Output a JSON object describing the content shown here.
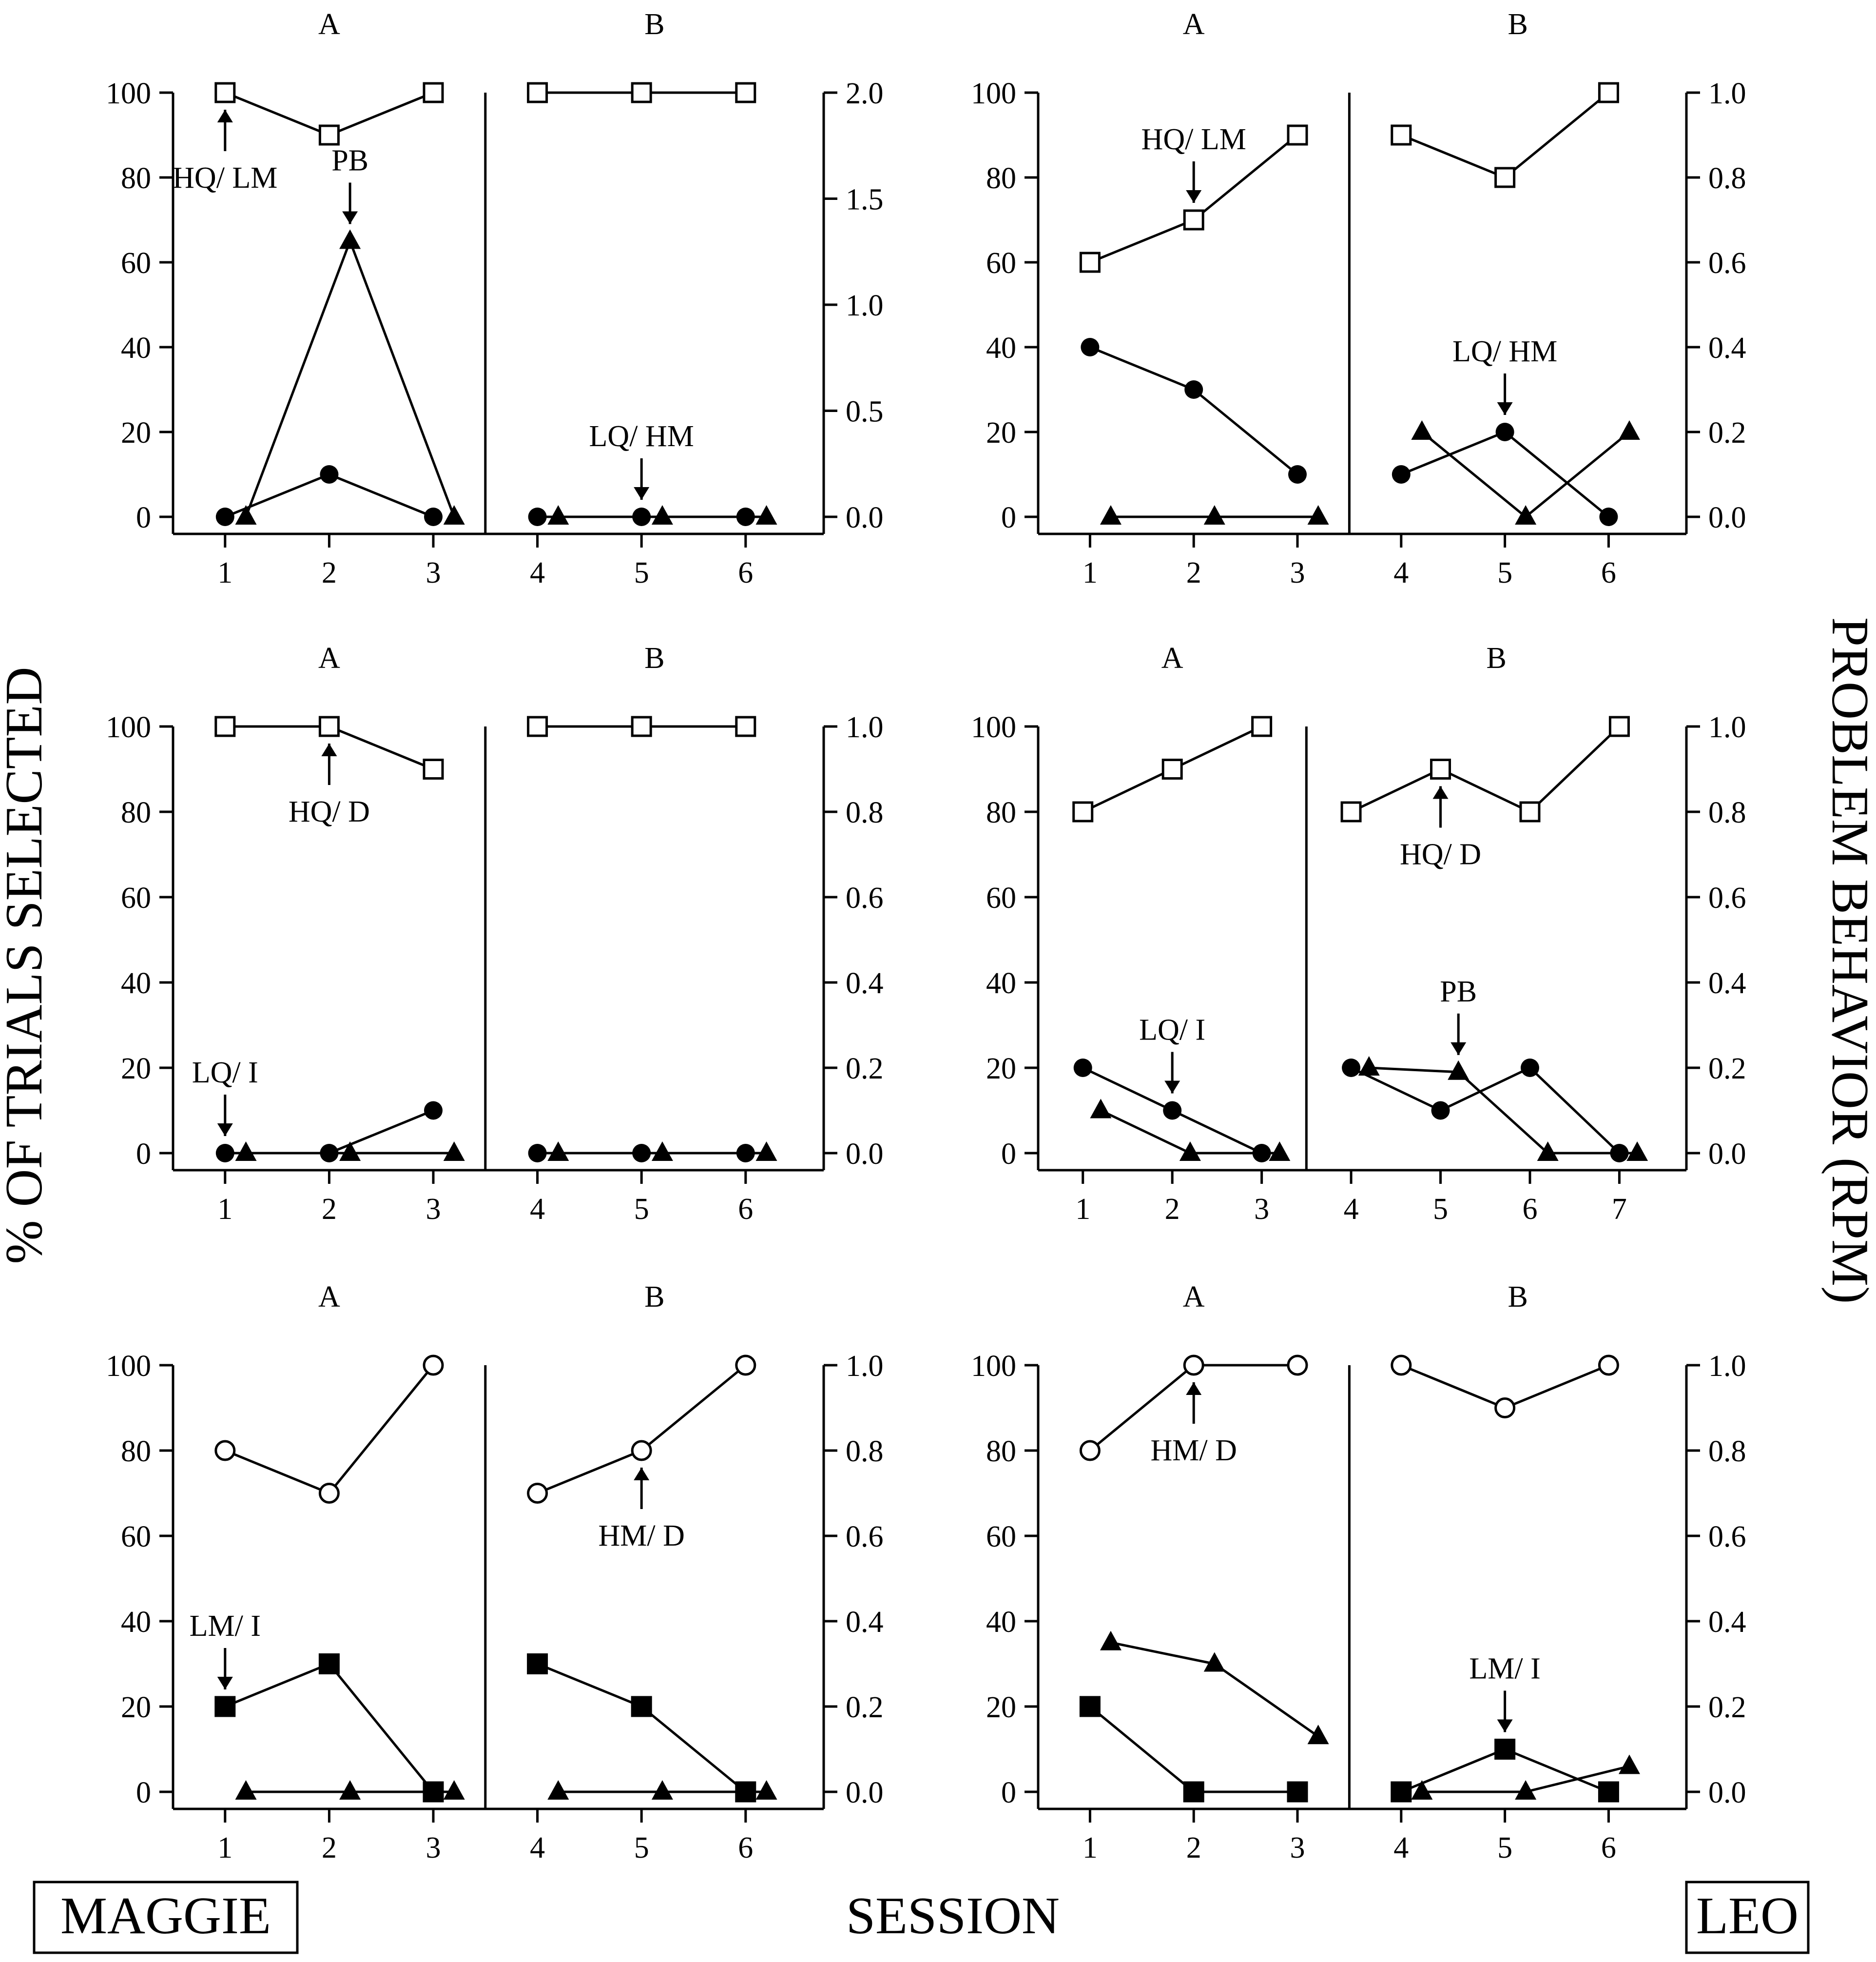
{
  "figure": {
    "y_axis_label": "% OF TRIALS SELECTED",
    "y2_axis_label": "PROBLEM BEHAVIOR (RPM)",
    "x_axis_label": "SESSION",
    "participants": [
      "MAGGIE",
      "LEO"
    ]
  },
  "chart_data": [
    {
      "id": "maggie-row1",
      "type": "line",
      "participant": "MAGGIE",
      "phase_labels": [
        "A",
        "B"
      ],
      "xlim": [
        0.5,
        6.75
      ],
      "phase_change_after": 3.5,
      "ylim": [
        0,
        100
      ],
      "y_ticks": [
        0,
        20,
        40,
        60,
        80,
        100
      ],
      "y2lim": [
        0,
        2.0
      ],
      "y2_ticks": [
        "0.0",
        "0.5",
        "1.0",
        "1.5",
        "2.0"
      ],
      "x_ticks": [
        1,
        2,
        3,
        4,
        5,
        6
      ],
      "series": [
        {
          "name": "HQ/ LM",
          "marker": "open-square",
          "axis": "left",
          "points": [
            [
              1,
              100
            ],
            [
              2,
              90
            ],
            [
              3,
              100
            ],
            null,
            [
              4,
              100
            ],
            [
              5,
              100
            ],
            [
              6,
              100
            ]
          ]
        },
        {
          "name": "LQ/ HM",
          "marker": "filled-circle",
          "axis": "left",
          "points": [
            [
              1,
              0
            ],
            [
              2,
              10
            ],
            [
              3,
              0
            ],
            null,
            [
              4,
              0
            ],
            [
              5,
              0
            ],
            [
              6,
              0
            ]
          ]
        },
        {
          "name": "PB",
          "marker": "filled-triangle",
          "axis": "right",
          "points": [
            [
              1.2,
              0
            ],
            [
              2.2,
              1.3
            ],
            [
              3.2,
              0
            ],
            null,
            [
              4.2,
              0
            ],
            [
              5.2,
              0
            ],
            [
              6.2,
              0
            ]
          ]
        }
      ],
      "annotations": [
        {
          "text": "HQ/ LM",
          "x": 1,
          "y": 100,
          "arrow": "up"
        },
        {
          "text": "PB",
          "x": 2.2,
          "y": 65,
          "arrow": "down"
        },
        {
          "text": "LQ/ HM",
          "x": 5,
          "y": 0,
          "arrow": "down"
        }
      ]
    },
    {
      "id": "leo-row1",
      "type": "line",
      "participant": "LEO",
      "phase_labels": [
        "A",
        "B"
      ],
      "xlim": [
        0.5,
        6.75
      ],
      "phase_change_after": 3.5,
      "ylim": [
        0,
        100
      ],
      "y_ticks": [
        0,
        20,
        40,
        60,
        80,
        100
      ],
      "y2lim": [
        0,
        1.0
      ],
      "y2_ticks": [
        "0.0",
        "0.2",
        "0.4",
        "0.6",
        "0.8",
        "1.0"
      ],
      "x_ticks": [
        1,
        2,
        3,
        4,
        5,
        6
      ],
      "series": [
        {
          "name": "HQ/ LM",
          "marker": "open-square",
          "axis": "left",
          "points": [
            [
              1,
              60
            ],
            [
              2,
              70
            ],
            [
              3,
              90
            ],
            null,
            [
              4,
              90
            ],
            [
              5,
              80
            ],
            [
              6,
              100
            ]
          ]
        },
        {
          "name": "LQ/ HM",
          "marker": "filled-circle",
          "axis": "left",
          "points": [
            [
              1,
              40
            ],
            [
              2,
              30
            ],
            [
              3,
              10
            ],
            null,
            [
              4,
              10
            ],
            [
              5,
              20
            ],
            [
              6,
              0
            ]
          ]
        },
        {
          "name": "PB",
          "marker": "filled-triangle",
          "axis": "right",
          "points": [
            [
              1.2,
              0
            ],
            [
              2.2,
              0
            ],
            [
              3.2,
              0
            ],
            null,
            [
              4.2,
              0.2
            ],
            [
              5.2,
              0
            ],
            [
              6.2,
              0.2
            ]
          ]
        }
      ],
      "annotations": [
        {
          "text": "HQ/ LM",
          "x": 2,
          "y": 70,
          "arrow": "down"
        },
        {
          "text": "LQ/ HM",
          "x": 5,
          "y": 20,
          "arrow": "down"
        }
      ]
    },
    {
      "id": "maggie-row2",
      "type": "line",
      "participant": "MAGGIE",
      "phase_labels": [
        "A",
        "B"
      ],
      "xlim": [
        0.5,
        6.75
      ],
      "phase_change_after": 3.5,
      "ylim": [
        0,
        100
      ],
      "y_ticks": [
        0,
        20,
        40,
        60,
        80,
        100
      ],
      "y2lim": [
        0,
        1.0
      ],
      "y2_ticks": [
        "0.0",
        "0.2",
        "0.4",
        "0.6",
        "0.8",
        "1.0"
      ],
      "x_ticks": [
        1,
        2,
        3,
        4,
        5,
        6
      ],
      "series": [
        {
          "name": "HQ/ D",
          "marker": "open-square",
          "axis": "left",
          "points": [
            [
              1,
              100
            ],
            [
              2,
              100
            ],
            [
              3,
              90
            ],
            null,
            [
              4,
              100
            ],
            [
              5,
              100
            ],
            [
              6,
              100
            ]
          ]
        },
        {
          "name": "LQ/ I",
          "marker": "filled-circle",
          "axis": "left",
          "points": [
            [
              1,
              0
            ],
            [
              2,
              0
            ],
            [
              3,
              10
            ],
            null,
            [
              4,
              0
            ],
            [
              5,
              0
            ],
            [
              6,
              0
            ]
          ]
        },
        {
          "name": "PB",
          "marker": "filled-triangle",
          "axis": "right",
          "points": [
            [
              1.2,
              0
            ],
            [
              2.2,
              0
            ],
            [
              3.2,
              0
            ],
            null,
            [
              4.2,
              0
            ],
            [
              5.2,
              0
            ],
            [
              6.2,
              0
            ]
          ]
        }
      ],
      "annotations": [
        {
          "text": "HQ/ D",
          "x": 2,
          "y": 100,
          "arrow": "up"
        },
        {
          "text": "LQ/ I",
          "x": 1,
          "y": 0,
          "arrow": "down"
        }
      ]
    },
    {
      "id": "leo-row2",
      "type": "line",
      "participant": "LEO",
      "phase_labels": [
        "A",
        "B"
      ],
      "xlim": [
        0.5,
        7.75
      ],
      "phase_change_after": 3.5,
      "ylim": [
        0,
        100
      ],
      "y_ticks": [
        0,
        20,
        40,
        60,
        80,
        100
      ],
      "y2lim": [
        0,
        1.0
      ],
      "y2_ticks": [
        "0.0",
        "0.2",
        "0.4",
        "0.6",
        "0.8",
        "1.0"
      ],
      "x_ticks": [
        1,
        2,
        3,
        4,
        5,
        6,
        7
      ],
      "series": [
        {
          "name": "HQ/ D",
          "marker": "open-square",
          "axis": "left",
          "points": [
            [
              1,
              80
            ],
            [
              2,
              90
            ],
            [
              3,
              100
            ],
            null,
            [
              4,
              80
            ],
            [
              5,
              90
            ],
            [
              6,
              80
            ],
            [
              7,
              100
            ]
          ]
        },
        {
          "name": "LQ/ I",
          "marker": "filled-circle",
          "axis": "left",
          "points": [
            [
              1,
              20
            ],
            [
              2,
              10
            ],
            [
              3,
              0
            ],
            null,
            [
              4,
              20
            ],
            [
              5,
              10
            ],
            [
              6,
              20
            ],
            [
              7,
              0
            ]
          ]
        },
        {
          "name": "PB",
          "marker": "filled-triangle",
          "axis": "right",
          "points": [
            [
              1.2,
              0.1
            ],
            [
              2.2,
              0
            ],
            [
              3.2,
              0
            ],
            null,
            [
              4.2,
              0.2
            ],
            [
              5.2,
              0.19
            ],
            [
              6.2,
              0
            ],
            [
              7.2,
              0
            ]
          ]
        }
      ],
      "annotations": [
        {
          "text": "HQ/ D",
          "x": 5,
          "y": 90,
          "arrow": "up"
        },
        {
          "text": "LQ/ I",
          "x": 2,
          "y": 10,
          "arrow": "down"
        },
        {
          "text": "PB",
          "x": 5.2,
          "y": 19,
          "arrow": "down"
        }
      ]
    },
    {
      "id": "maggie-row3",
      "type": "line",
      "participant": "MAGGIE",
      "phase_labels": [
        "A",
        "B"
      ],
      "xlim": [
        0.5,
        6.75
      ],
      "phase_change_after": 3.5,
      "ylim": [
        0,
        100
      ],
      "y_ticks": [
        0,
        20,
        40,
        60,
        80,
        100
      ],
      "y2lim": [
        0,
        1.0
      ],
      "y2_ticks": [
        "0.0",
        "0.2",
        "0.4",
        "0.6",
        "0.8",
        "1.0"
      ],
      "x_ticks": [
        1,
        2,
        3,
        4,
        5,
        6
      ],
      "series": [
        {
          "name": "HM/ D",
          "marker": "open-circle",
          "axis": "left",
          "points": [
            [
              1,
              80
            ],
            [
              2,
              70
            ],
            [
              3,
              100
            ],
            null,
            [
              4,
              70
            ],
            [
              5,
              80
            ],
            [
              6,
              100
            ]
          ]
        },
        {
          "name": "LM/ I",
          "marker": "filled-square",
          "axis": "left",
          "points": [
            [
              1,
              20
            ],
            [
              2,
              30
            ],
            [
              3,
              0
            ],
            null,
            [
              4,
              30
            ],
            [
              5,
              20
            ],
            [
              6,
              0
            ]
          ]
        },
        {
          "name": "PB",
          "marker": "filled-triangle",
          "axis": "right",
          "points": [
            [
              1.2,
              0
            ],
            [
              2.2,
              0
            ],
            [
              3.2,
              0
            ],
            null,
            [
              4.2,
              0
            ],
            [
              5.2,
              0
            ],
            [
              6.2,
              0
            ]
          ]
        }
      ],
      "annotations": [
        {
          "text": "LM/ I",
          "x": 1,
          "y": 20,
          "arrow": "down"
        },
        {
          "text": "HM/ D",
          "x": 5,
          "y": 80,
          "arrow": "up"
        }
      ]
    },
    {
      "id": "leo-row3",
      "type": "line",
      "participant": "LEO",
      "phase_labels": [
        "A",
        "B"
      ],
      "xlim": [
        0.5,
        6.75
      ],
      "phase_change_after": 3.5,
      "ylim": [
        0,
        100
      ],
      "y_ticks": [
        0,
        20,
        40,
        60,
        80,
        100
      ],
      "y2lim": [
        0,
        1.0
      ],
      "y2_ticks": [
        "0.0",
        "0.2",
        "0.4",
        "0.6",
        "0.8",
        "1.0"
      ],
      "x_ticks": [
        1,
        2,
        3,
        4,
        5,
        6
      ],
      "series": [
        {
          "name": "HM/ D",
          "marker": "open-circle",
          "axis": "left",
          "points": [
            [
              1,
              80
            ],
            [
              2,
              100
            ],
            [
              3,
              100
            ],
            null,
            [
              4,
              100
            ],
            [
              5,
              90
            ],
            [
              6,
              100
            ]
          ]
        },
        {
          "name": "LM/ I",
          "marker": "filled-square",
          "axis": "left",
          "points": [
            [
              1,
              20
            ],
            [
              2,
              0
            ],
            [
              3,
              0
            ],
            null,
            [
              4,
              0
            ],
            [
              5,
              10
            ],
            [
              6,
              0
            ]
          ]
        },
        {
          "name": "PB",
          "marker": "filled-triangle",
          "axis": "right",
          "points": [
            [
              1.2,
              0.35
            ],
            [
              2.2,
              0.3
            ],
            [
              3.2,
              0.13
            ],
            null,
            [
              4.2,
              0
            ],
            [
              5.2,
              0
            ],
            [
              6.2,
              0.06
            ]
          ]
        }
      ],
      "annotations": [
        {
          "text": "HM/ D",
          "x": 2,
          "y": 100,
          "arrow": "up"
        },
        {
          "text": "LM/ I",
          "x": 5,
          "y": 10,
          "arrow": "down"
        }
      ]
    }
  ]
}
